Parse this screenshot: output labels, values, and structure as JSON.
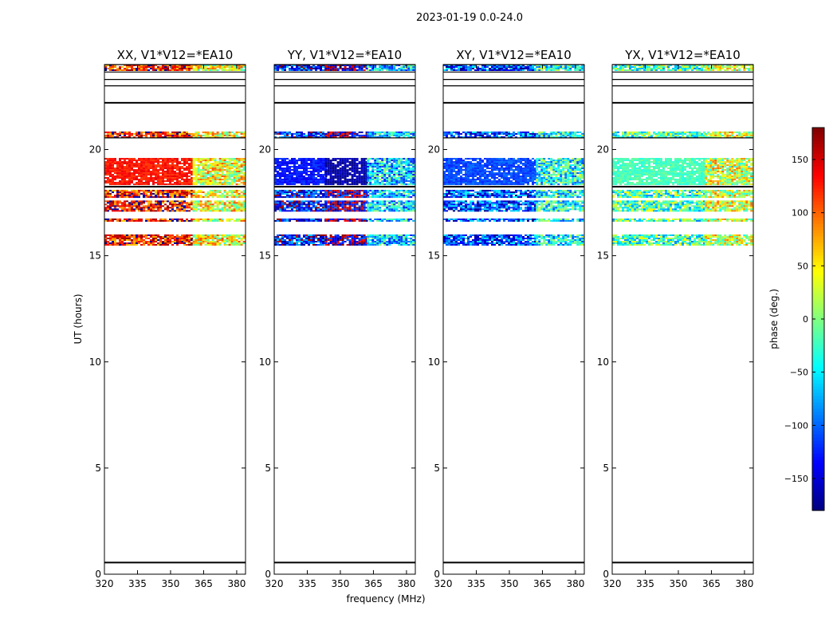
{
  "figure": {
    "suptitle": "2023-01-19 0.0-24.0"
  },
  "chart_data": {
    "type": "heatmap",
    "title": "2023-01-19 0.0-24.0",
    "xlabel": "frequency (MHz)",
    "ylabel": "UT (hours)",
    "xlim": [
      320,
      384
    ],
    "ylim": [
      0,
      24
    ],
    "x_ticks": [
      "320",
      "335",
      "350",
      "365",
      "380"
    ],
    "y_ticks": [
      "0",
      "5",
      "10",
      "15",
      "20"
    ],
    "colorbar": {
      "label": "phase (deg.)",
      "range": [
        -180,
        180
      ],
      "ticks": [
        "150",
        "100",
        "50",
        "0",
        "−50",
        "−100",
        "−150"
      ],
      "tick_values": [
        150,
        100,
        50,
        0,
        -50,
        -100,
        -150
      ],
      "colormap": "jet"
    },
    "horizontal_lines_ut": [
      0.55,
      22.2,
      18.25,
      20.55,
      23.0,
      23.3,
      23.65,
      24.0
    ],
    "data_bands_ut": [
      [
        15.5,
        16.0
      ],
      [
        16.6,
        16.75
      ],
      [
        17.1,
        17.6
      ],
      [
        17.75,
        18.1
      ],
      [
        18.35,
        19.6
      ],
      [
        20.55,
        20.85
      ],
      [
        23.7,
        24.0
      ]
    ],
    "panels": [
      {
        "title": "XX, V1*V12=*EA10",
        "phase_segments": [
          {
            "from": 320,
            "to": 360,
            "phase": 130
          },
          {
            "from": 360,
            "to": 384,
            "phase": 40
          }
        ]
      },
      {
        "title": "YY, V1*V12=*EA10",
        "phase_segments": [
          {
            "from": 320,
            "to": 343,
            "phase": -130
          },
          {
            "from": 343,
            "to": 362,
            "phase": -165
          },
          {
            "from": 362,
            "to": 384,
            "phase": -60
          }
        ]
      },
      {
        "title": "XY, V1*V12=*EA10",
        "phase_segments": [
          {
            "from": 320,
            "to": 362,
            "phase": -110
          },
          {
            "from": 362,
            "to": 384,
            "phase": -40
          }
        ]
      },
      {
        "title": "YX, V1*V12=*EA10",
        "phase_segments": [
          {
            "from": 320,
            "to": 362,
            "phase": -20
          },
          {
            "from": 362,
            "to": 384,
            "phase": 30
          }
        ]
      }
    ]
  }
}
